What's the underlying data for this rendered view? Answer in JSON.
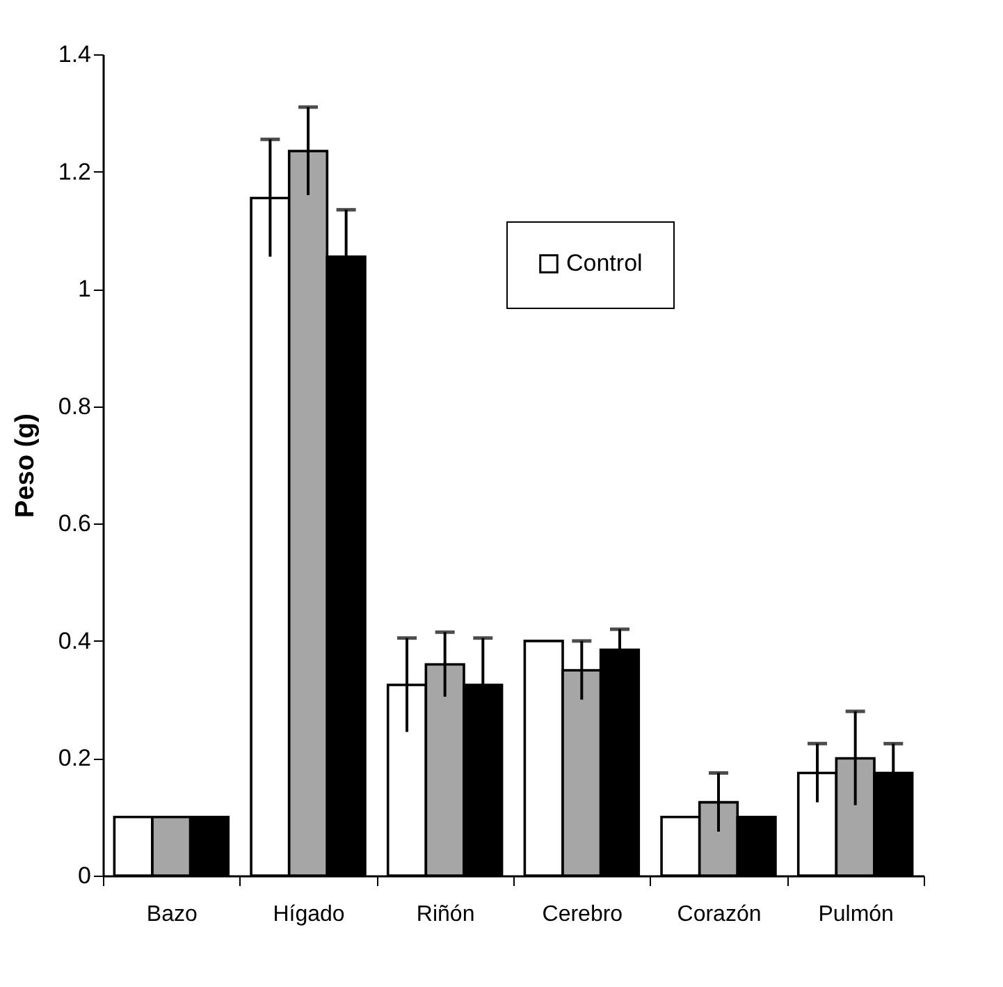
{
  "chart_data": {
    "type": "bar",
    "ylabel": "Peso (g)",
    "categories": [
      "Bazo",
      "Hígado",
      "Riñón",
      "Cerebro",
      "Corazón",
      "Pulmón"
    ],
    "series": [
      {
        "name": "Control",
        "color": "#ffffff",
        "values": [
          0.1,
          1.155,
          0.325,
          0.4,
          0.1,
          0.175
        ],
        "errors": [
          null,
          0.1,
          0.08,
          null,
          null,
          0.05
        ]
      },
      {
        "color": "#a6a6a6",
        "values": [
          0.1,
          1.235,
          0.36,
          0.35,
          0.125,
          0.2
        ],
        "errors": [
          null,
          0.075,
          0.055,
          0.05,
          0.05,
          0.08
        ]
      },
      {
        "color": "#000000",
        "values": [
          0.1,
          1.055,
          0.325,
          0.385,
          0.1,
          0.175
        ],
        "errors": [
          null,
          0.08,
          0.08,
          0.035,
          null,
          0.05
        ]
      }
    ],
    "ylim": [
      0,
      1.4
    ],
    "yticks": [
      0,
      0.2,
      0.4,
      0.6,
      0.8,
      1,
      1.2,
      1.4
    ],
    "grid": false,
    "legend": "top right"
  }
}
